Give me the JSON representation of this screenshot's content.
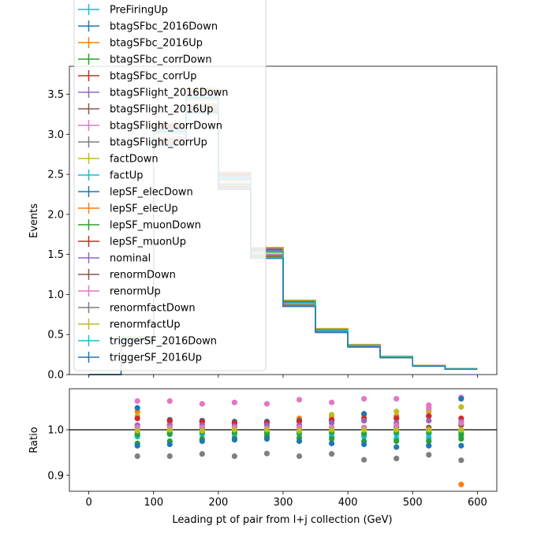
{
  "chart_data": [
    {
      "type": "line",
      "panel": "main",
      "step": true,
      "xlabel": "",
      "ylabel": "Events",
      "xlim": [
        -30,
        630
      ],
      "ylim": [
        0,
        3.85
      ],
      "xticks": [
        0,
        100,
        200,
        300,
        400,
        500,
        600
      ],
      "yticks": [
        0.0,
        0.5,
        1.0,
        1.5,
        2.0,
        2.5,
        3.0,
        3.5
      ],
      "ytick_labels": [
        "0.0",
        "0.5",
        "1.0",
        "1.5",
        "2.0",
        "2.5",
        "3.0",
        "3.5"
      ],
      "bin_edges": [
        0,
        50,
        100,
        150,
        200,
        250,
        300,
        350,
        400,
        450,
        500,
        550,
        600
      ],
      "nominal": [
        0.0,
        0.45,
        3.0,
        3.42,
        2.42,
        1.52,
        0.89,
        0.55,
        0.36,
        0.22,
        0.11,
        0.07
      ],
      "legend_position": "upper left",
      "series": [
        {
          "name": "PreFiringUp",
          "color": "#17becf"
        },
        {
          "name": "btagSFbc_2016Down",
          "color": "#1f77b4"
        },
        {
          "name": "btagSFbc_2016Up",
          "color": "#ff7f0e"
        },
        {
          "name": "btagSFbc_corrDown",
          "color": "#2ca02c"
        },
        {
          "name": "btagSFbc_corrUp",
          "color": "#d62728"
        },
        {
          "name": "btagSFlight_2016Down",
          "color": "#9467bd"
        },
        {
          "name": "btagSFlight_2016Up",
          "color": "#8c564b"
        },
        {
          "name": "btagSFlight_corrDown",
          "color": "#e377c2"
        },
        {
          "name": "btagSFlight_corrUp",
          "color": "#7f7f7f"
        },
        {
          "name": "factDown",
          "color": "#bcbd22"
        },
        {
          "name": "factUp",
          "color": "#17becf"
        },
        {
          "name": "lepSF_elecDown",
          "color": "#1f77b4"
        },
        {
          "name": "lepSF_elecUp",
          "color": "#ff7f0e"
        },
        {
          "name": "lepSF_muonDown",
          "color": "#2ca02c"
        },
        {
          "name": "lepSF_muonUp",
          "color": "#d62728"
        },
        {
          "name": "nominal",
          "color": "#9467bd"
        },
        {
          "name": "renormDown",
          "color": "#8c564b"
        },
        {
          "name": "renormUp",
          "color": "#e377c2"
        },
        {
          "name": "renormfactDown",
          "color": "#7f7f7f"
        },
        {
          "name": "renormfactUp",
          "color": "#bcbd22"
        },
        {
          "name": "triggerSF_2016Down",
          "color": "#17becf"
        },
        {
          "name": "triggerSF_2016Up",
          "color": "#1f77b4"
        }
      ]
    },
    {
      "type": "scatter",
      "panel": "ratio",
      "xlabel": "Leading pt of pair from l+j collection (GeV)",
      "ylabel": "Ratio",
      "xlim": [
        -30,
        630
      ],
      "ylim": [
        0.865,
        1.09
      ],
      "xticks": [
        0,
        100,
        200,
        300,
        400,
        500,
        600
      ],
      "yticks": [
        0.9,
        1.0
      ],
      "ytick_labels": [
        "0.9",
        "1.0"
      ],
      "reference_line": 1.0,
      "x": [
        75,
        125,
        175,
        225,
        275,
        325,
        375,
        425,
        475,
        525,
        575
      ],
      "point_series": [
        {
          "color": "#e377c2",
          "values": [
            1.063,
            1.063,
            1.057,
            1.06,
            1.057,
            1.066,
            1.06,
            1.068,
            1.068,
            1.054,
            1.071
          ]
        },
        {
          "color": "#7f7f7f",
          "values": [
            0.942,
            0.942,
            0.947,
            0.942,
            0.948,
            0.942,
            0.947,
            0.934,
            0.937,
            0.945,
            0.933
          ]
        },
        {
          "color": "#ff7f0e",
          "values": [
            1.04,
            1.02,
            1.02,
            1.015,
            1.018,
            1.025,
            1.03,
            1.02,
            1.03,
            1.04,
            0.88
          ]
        },
        {
          "color": "#bcbd22",
          "values": [
            1.03,
            1.015,
            1.015,
            1.012,
            1.015,
            1.02,
            1.033,
            1.033,
            1.04,
            1.043,
            1.05
          ]
        },
        {
          "color": "#1f77b4",
          "values": [
            1.048,
            1.022,
            1.02,
            1.018,
            1.018,
            1.02,
            1.02,
            1.035,
            1.025,
            1.03,
            1.068
          ]
        },
        {
          "color": "#d62728",
          "values": [
            1.025,
            1.02,
            1.018,
            1.015,
            1.015,
            1.018,
            1.022,
            1.025,
            1.025,
            1.03,
            1.025
          ]
        },
        {
          "color": "#9467bd",
          "values": [
            1.01,
            1.01,
            1.01,
            1.008,
            1.01,
            1.01,
            1.015,
            1.02,
            1.015,
            1.02,
            1.018
          ]
        },
        {
          "color": "#8c564b",
          "values": [
            1.0,
            1.0,
            1.002,
            1.0,
            1.0,
            1.0,
            1.005,
            1.005,
            1.005,
            1.005,
            1.01
          ]
        },
        {
          "color": "#17becf",
          "values": [
            0.985,
            0.99,
            0.99,
            0.99,
            0.988,
            0.99,
            0.985,
            0.985,
            0.98,
            0.982,
            0.985
          ]
        },
        {
          "color": "#2ca02c",
          "values": [
            0.97,
            0.975,
            0.98,
            0.982,
            0.985,
            0.982,
            0.98,
            0.975,
            0.975,
            0.975,
            0.98
          ]
        },
        {
          "color": "#1f77b4",
          "values": [
            0.965,
            0.968,
            0.975,
            0.978,
            0.98,
            0.975,
            0.97,
            0.968,
            0.962,
            0.965,
            0.965
          ]
        },
        {
          "color": "#17becf",
          "values": [
            0.995,
            0.995,
            0.995,
            0.993,
            0.995,
            0.995,
            0.992,
            0.99,
            0.99,
            0.99,
            0.995
          ]
        },
        {
          "color": "#2ca02c",
          "values": [
            0.99,
            0.992,
            0.995,
            0.995,
            0.993,
            0.995,
            0.995,
            0.992,
            0.995,
            0.995,
            0.99
          ]
        },
        {
          "color": "#e377c2",
          "values": [
            1.005,
            1.005,
            1.005,
            1.005,
            1.003,
            1.005,
            1.005,
            1.005,
            1.01,
            1.048,
            1.015
          ]
        },
        {
          "color": "#bcbd22",
          "values": [
            0.998,
            1.0,
            0.998,
            1.0,
            1.0,
            0.998,
            1.0,
            1.0,
            1.0,
            1.0,
            1.0
          ]
        }
      ]
    }
  ]
}
